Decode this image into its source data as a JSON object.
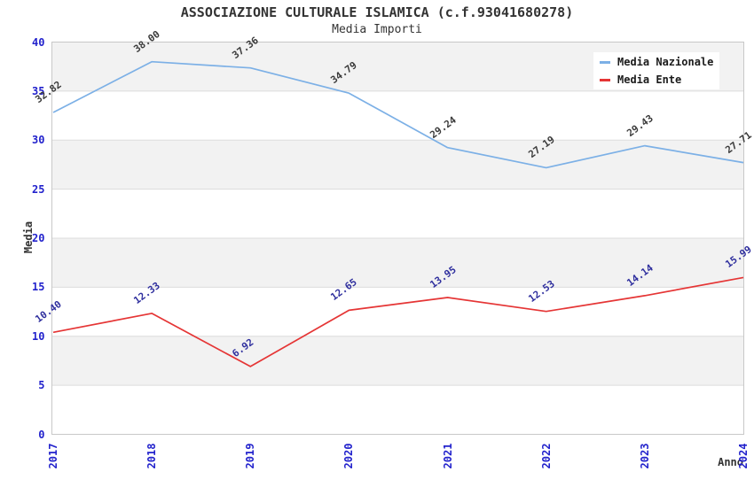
{
  "header": {
    "title": "ASSOCIAZIONE CULTURALE ISLAMICA (c.f.93041680278)",
    "subtitle": "Media Importi"
  },
  "chart_data": {
    "type": "line",
    "title": "ASSOCIAZIONE CULTURALE ISLAMICA (c.f.93041680278)",
    "subtitle": "Media Importi",
    "xlabel": "Anno",
    "ylabel": "Media",
    "categories": [
      "2017",
      "2018",
      "2019",
      "2020",
      "2021",
      "2022",
      "2023",
      "2024"
    ],
    "series": [
      {
        "name": "Media Nazionale",
        "color": "#7cb0e6",
        "label_color": "#3a3a3a",
        "values": [
          32.82,
          38.0,
          37.36,
          34.79,
          29.24,
          27.19,
          29.43,
          27.71
        ]
      },
      {
        "name": "Media Ente",
        "color": "#e53535",
        "label_color": "#2f2f9e",
        "values": [
          10.4,
          12.33,
          6.92,
          12.65,
          13.95,
          12.53,
          14.14,
          15.99
        ]
      }
    ],
    "ylim": [
      0,
      40
    ],
    "ytick_step": 5,
    "yticks": [
      0,
      5,
      10,
      15,
      20,
      25,
      30,
      35,
      40
    ],
    "grid": "horizontal alternating bands every 5 units",
    "legend_position": "top-right",
    "value_label_decimals": 2,
    "colors": {
      "tick_label": "#2222cc",
      "band_gray": "#f2f2f2",
      "band_white": "#ffffff",
      "gridline": "#dcdcdc",
      "plot_border": "#c8c8c8",
      "title_text": "#333333",
      "axis_title_text": "#333333"
    }
  }
}
